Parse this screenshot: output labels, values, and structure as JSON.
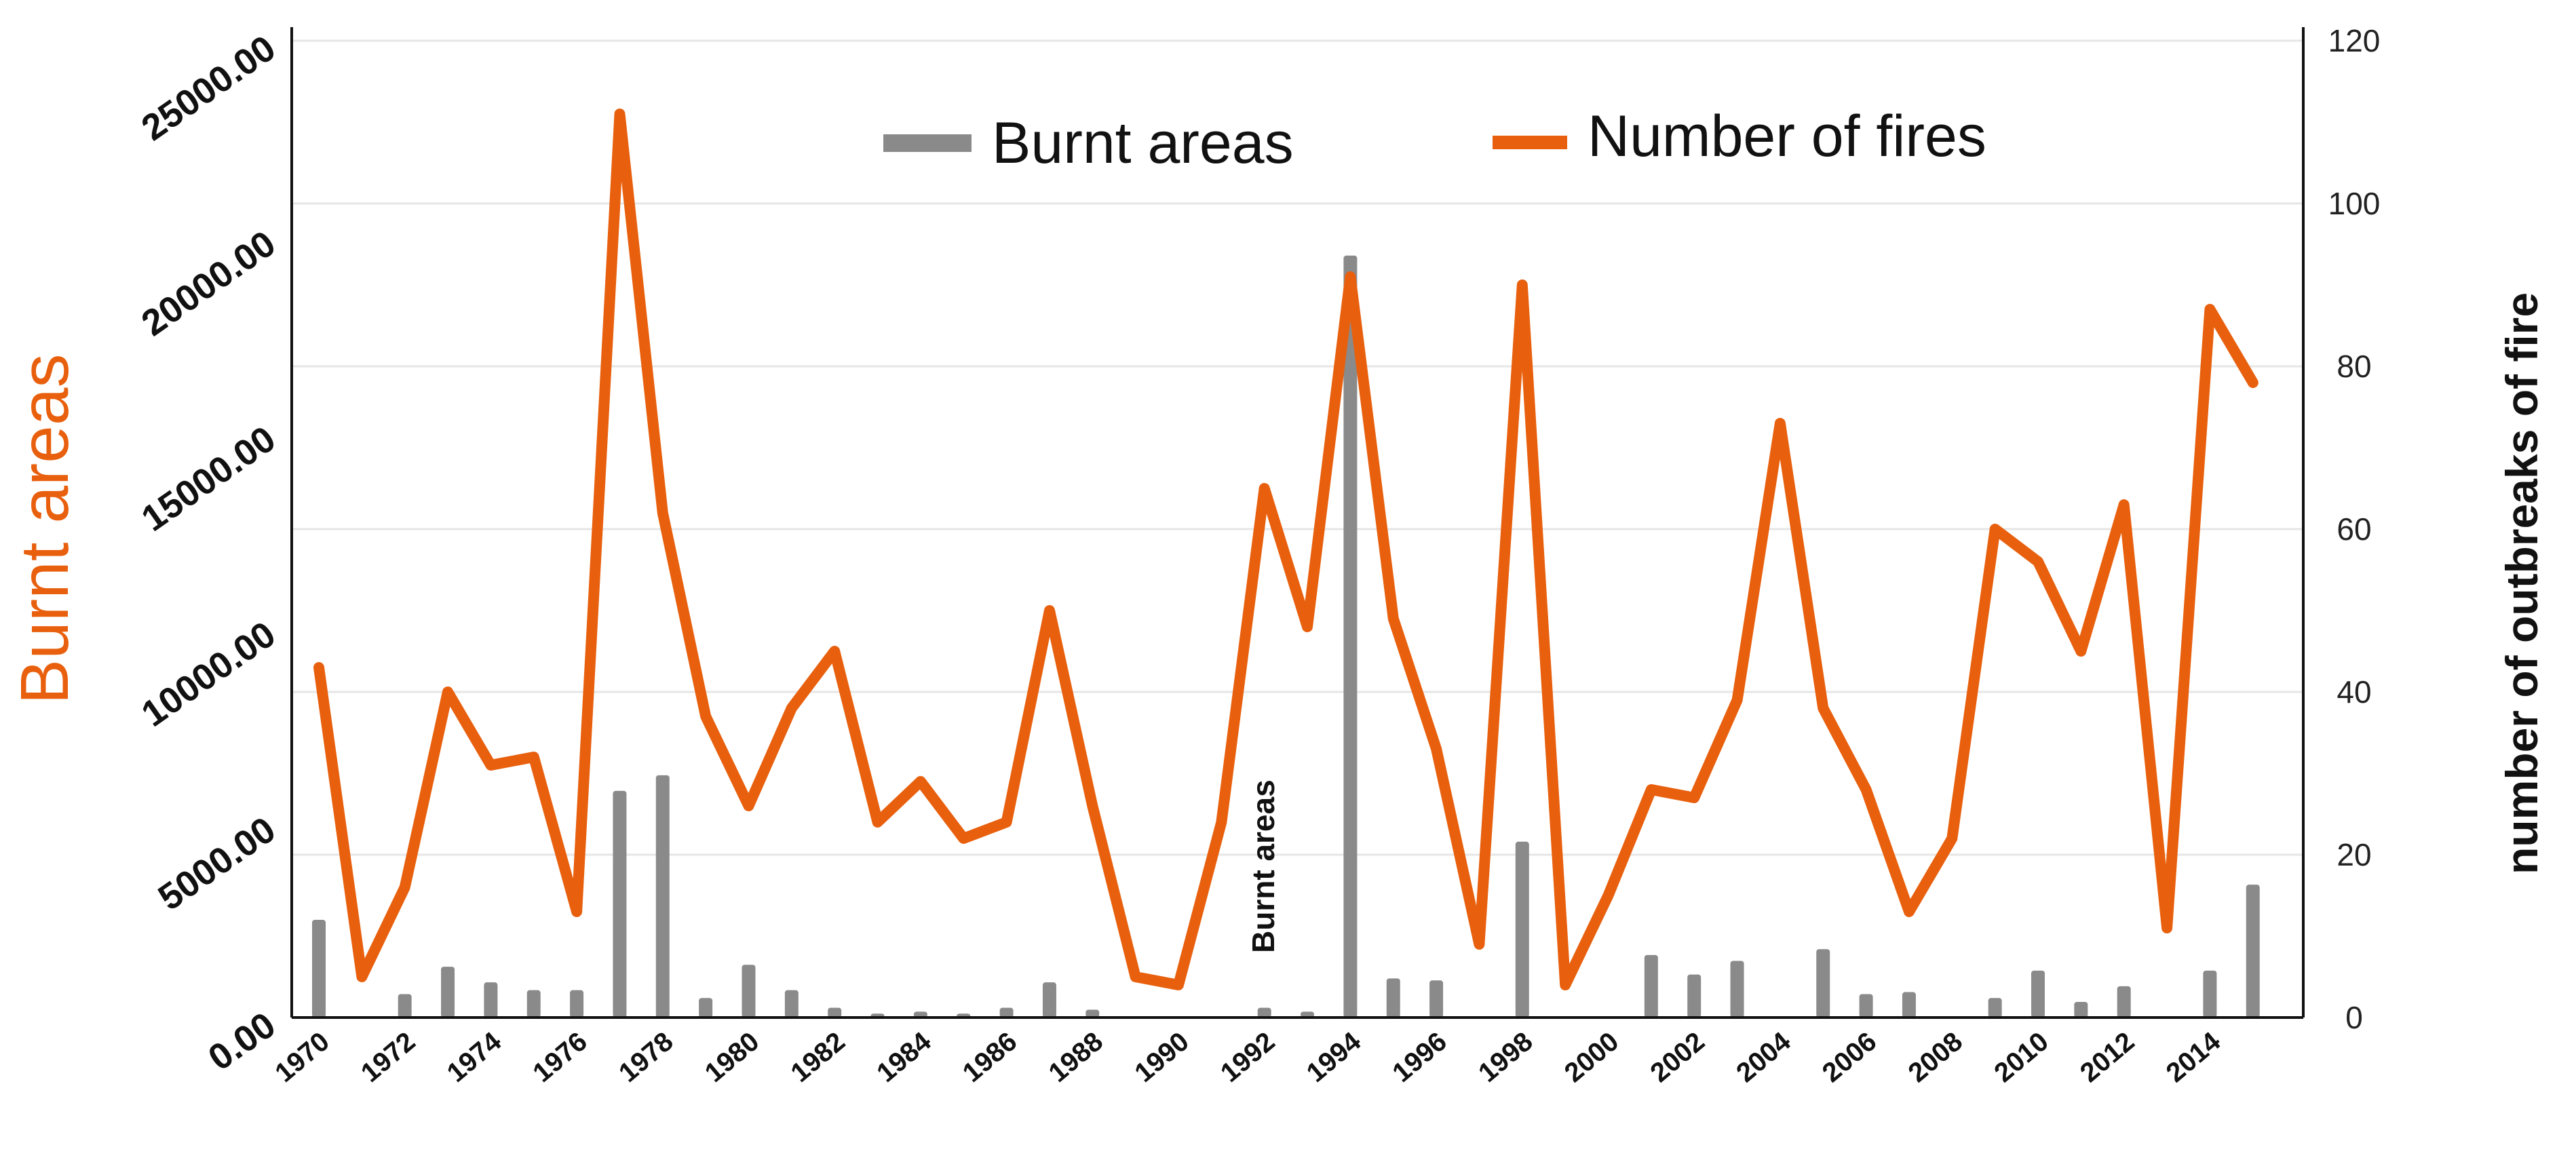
{
  "chart_data": {
    "type": "bar+line",
    "title": "",
    "years": [
      1970,
      1971,
      1972,
      1973,
      1974,
      1975,
      1976,
      1977,
      1978,
      1979,
      1980,
      1981,
      1982,
      1983,
      1984,
      1985,
      1986,
      1987,
      1988,
      1989,
      1990,
      1991,
      1992,
      1993,
      1994,
      1995,
      1996,
      1997,
      1998,
      1999,
      2000,
      2001,
      2002,
      2003,
      2004,
      2005,
      2006,
      2007,
      2008,
      2009,
      2010,
      2011,
      2012,
      2013,
      2014,
      2015
    ],
    "x_tick_labels": [
      "1970",
      "1972",
      "1974",
      "1976",
      "1978",
      "1980",
      "1982",
      "1984",
      "1986",
      "1988",
      "1990",
      "1992",
      "1994",
      "1996",
      "1998",
      "2000",
      "2002",
      "2004",
      "2006",
      "2008",
      "2010",
      "2012",
      "2014"
    ],
    "series": [
      {
        "name": "Burnt areas",
        "kind": "bar",
        "axis": "left",
        "color": "#8a8a8a",
        "values": [
          2500,
          0,
          600,
          1300,
          900,
          700,
          700,
          5800,
          6200,
          500,
          1350,
          700,
          250,
          100,
          150,
          100,
          250,
          900,
          200,
          0,
          0,
          0,
          250,
          150,
          19500,
          1000,
          950,
          0,
          4500,
          0,
          0,
          1600,
          1100,
          1450,
          0,
          1750,
          600,
          650,
          0,
          500,
          1200,
          400,
          800,
          0,
          1200,
          3400
        ]
      },
      {
        "name": "Number of fires",
        "kind": "line",
        "axis": "right",
        "color": "#e8600e",
        "values": [
          43,
          5,
          16,
          40,
          31,
          32,
          13,
          111,
          62,
          37,
          26,
          38,
          45,
          24,
          29,
          22,
          24,
          50,
          26,
          5,
          4,
          24,
          65,
          48,
          91,
          49,
          33,
          9,
          90,
          4,
          15,
          28,
          27,
          39,
          73,
          38,
          28,
          13,
          22,
          60,
          56,
          45,
          63,
          11,
          87,
          78
        ]
      }
    ],
    "y_left": {
      "label": "Burnt areas",
      "ylim": [
        0,
        25000
      ],
      "ticks": [
        "0.00",
        "5000.00",
        "10000.00",
        "15000.00",
        "20000.00",
        "25000.00"
      ]
    },
    "y_right": {
      "label": "number of outbreaks of fire",
      "ylim": [
        0,
        120
      ],
      "ticks": [
        "0",
        "20",
        "40",
        "60",
        "80",
        "100",
        "120"
      ]
    },
    "annotation": "Burnt areas",
    "legend": {
      "placement": "top-center",
      "items": [
        "Burnt areas",
        "Number of fires"
      ]
    },
    "grid": true,
    "colors": {
      "bar": "#8a8a8a",
      "line": "#e8600e",
      "left_label": "#e8600e",
      "right_label": "#111111",
      "grid": "#e6e6e6"
    }
  }
}
